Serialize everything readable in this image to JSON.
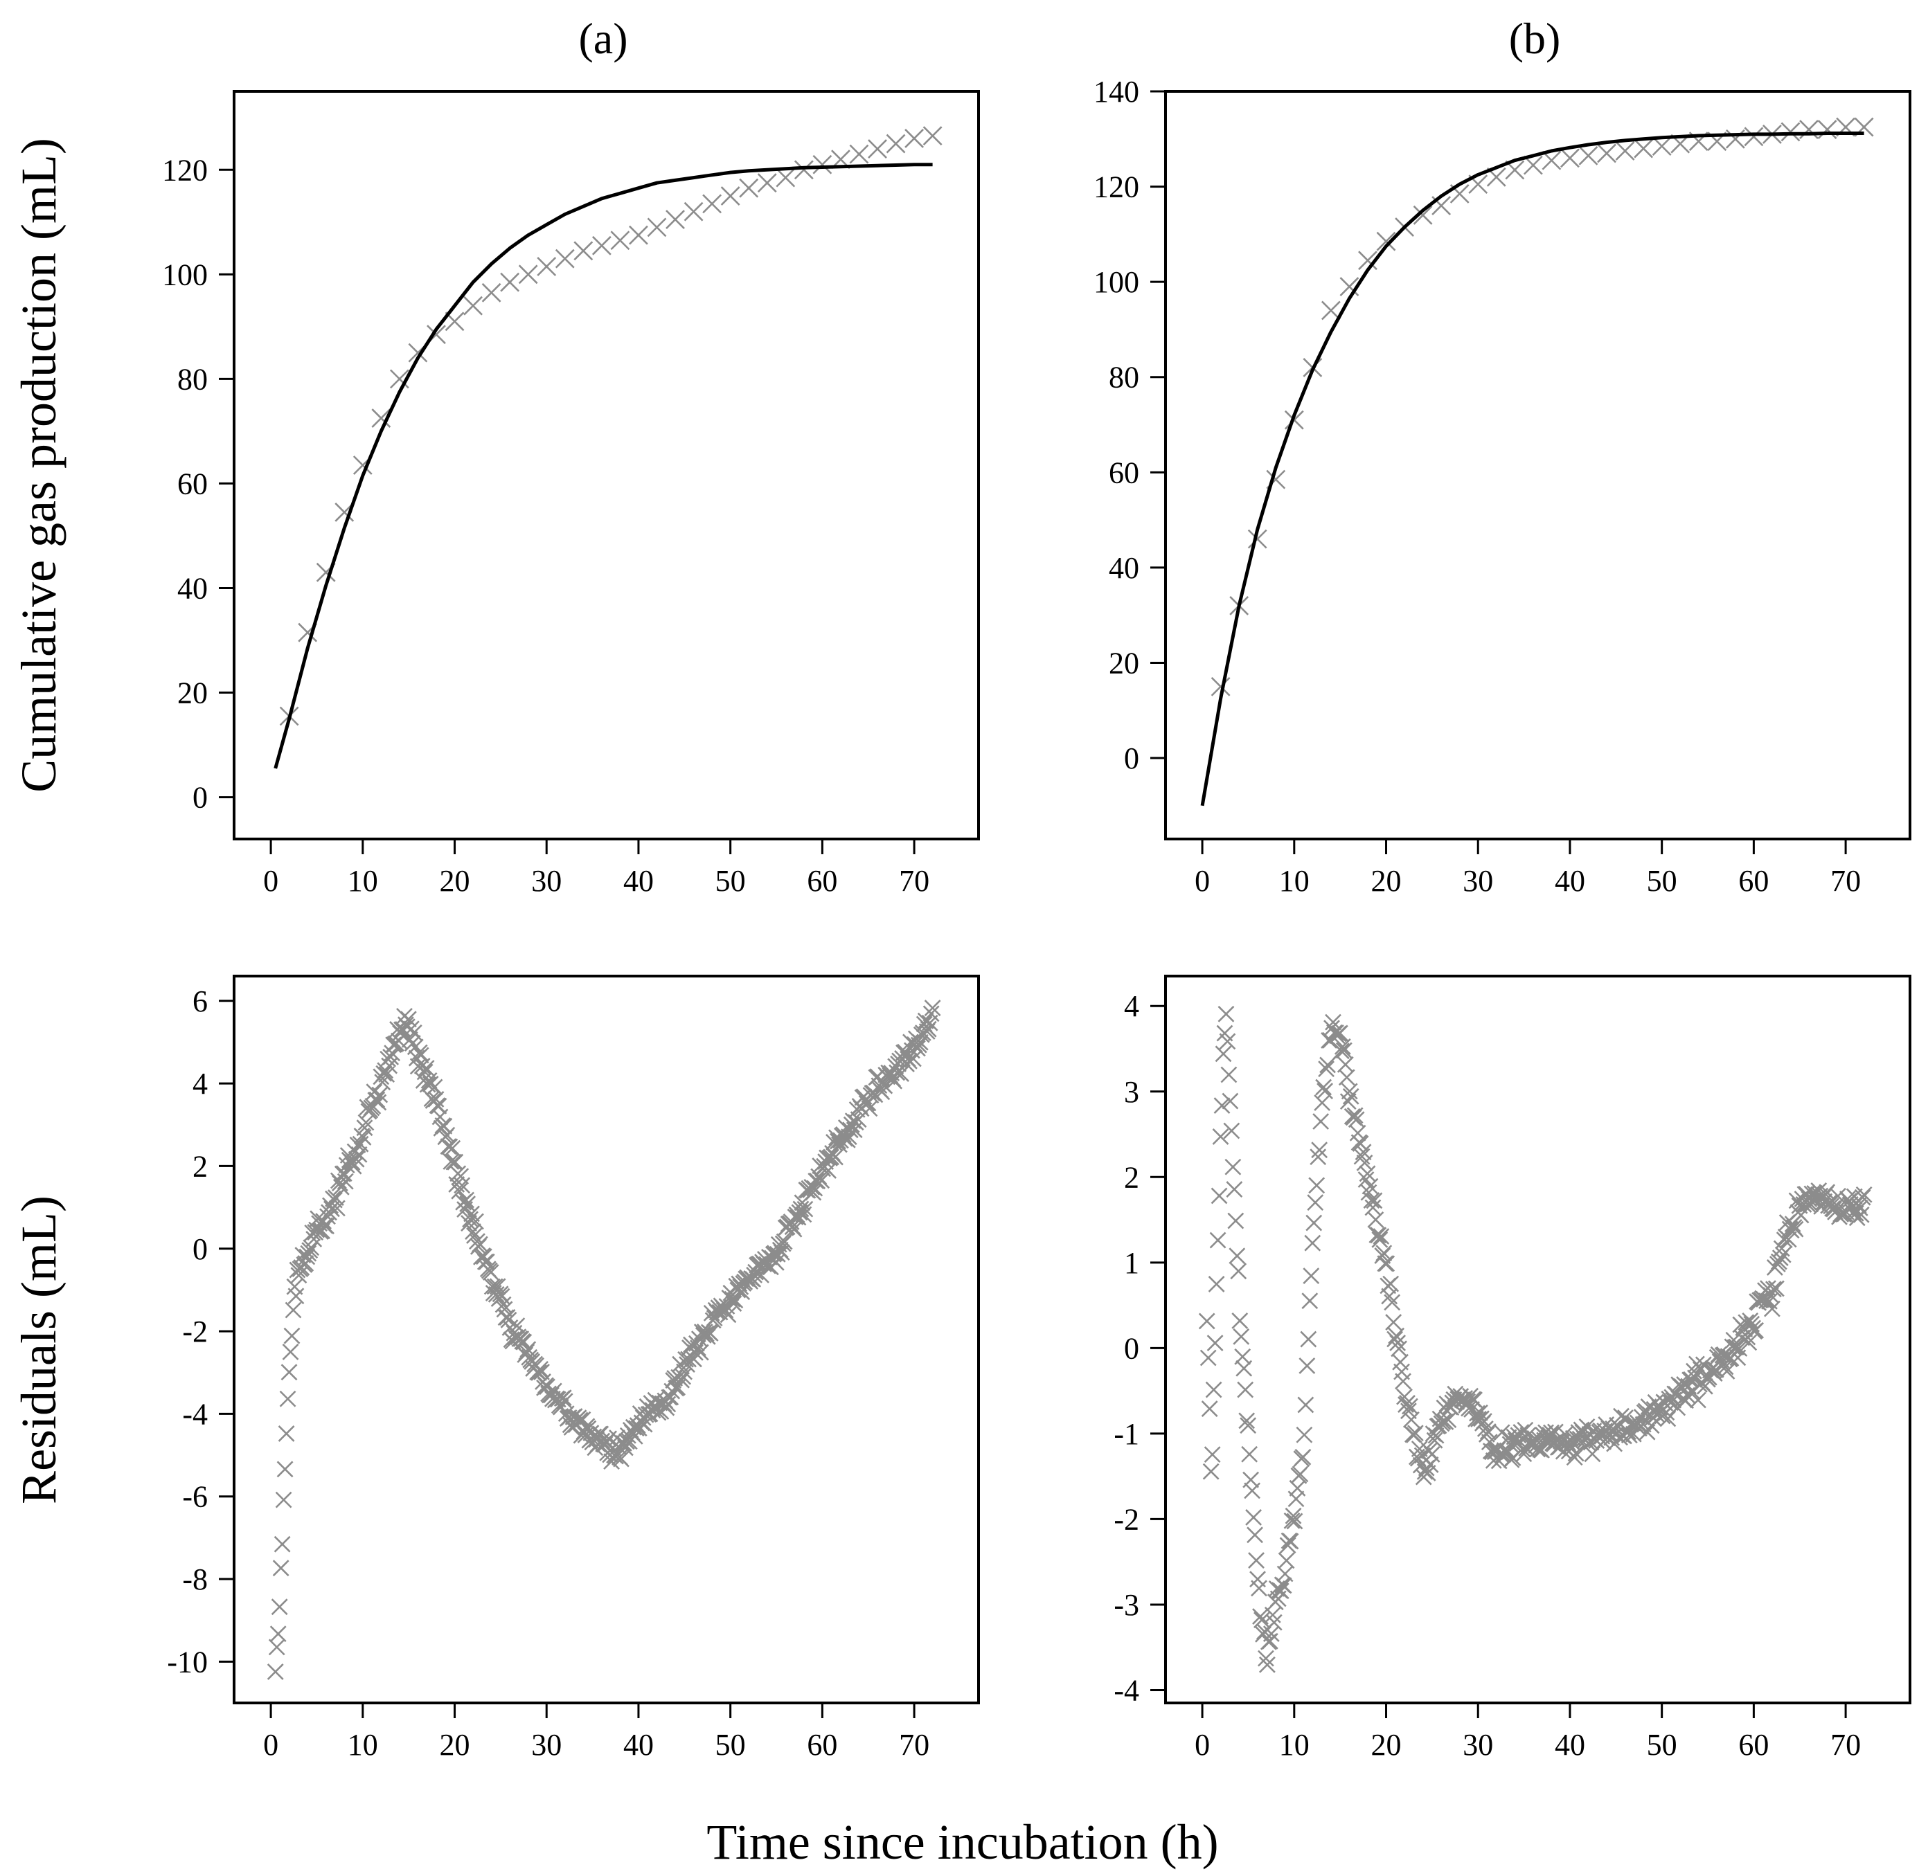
{
  "figure": {
    "xlabel": "Time since incubation (h)",
    "ylabel_top": "Cumulative gas production (mL)",
    "ylabel_bottom": "Residuals (mL)",
    "panel_labels": [
      "(a)",
      "(b)"
    ]
  },
  "style": {
    "fit_color": "#000000",
    "marker_color": "#8c8c8c",
    "axis_color": "#000000"
  },
  "chart_data": [
    {
      "id": "a-gas",
      "type": "scatter",
      "title": "(a)",
      "xlabel": "Time since incubation (h)",
      "ylabel": "Cumulative gas production (mL)",
      "xlim": [
        -4,
        77
      ],
      "ylim": [
        -8,
        135
      ],
      "xticks": [
        0,
        10,
        20,
        30,
        40,
        50,
        60,
        70
      ],
      "yticks": [
        0,
        20,
        40,
        60,
        80,
        100,
        120
      ],
      "series": [
        {
          "name": "observed",
          "marker": "x",
          "x": [
            2,
            4,
            6,
            8,
            10,
            12,
            14,
            16,
            18,
            20,
            22,
            24,
            26,
            28,
            30,
            32,
            34,
            36,
            38,
            40,
            42,
            44,
            46,
            48,
            50,
            52,
            54,
            56,
            58,
            60,
            62,
            64,
            66,
            68,
            70,
            72
          ],
          "y": [
            15.5,
            31.5,
            43,
            54.5,
            63.5,
            72.5,
            80,
            85,
            88.5,
            91,
            94,
            96.5,
            98.5,
            100,
            101.5,
            103,
            104.5,
            105.5,
            106.5,
            107.5,
            109,
            110.5,
            112,
            113.5,
            115,
            116.5,
            117.5,
            118.5,
            120,
            121,
            122,
            123,
            124,
            125,
            126,
            126.5
          ]
        },
        {
          "name": "fitted",
          "type": "line",
          "x": [
            0.5,
            2,
            4,
            6,
            8,
            10,
            12,
            14,
            16,
            18,
            20,
            22,
            24,
            26,
            28,
            30,
            32,
            34,
            36,
            38,
            40,
            42,
            44,
            46,
            48,
            50,
            52,
            54,
            56,
            58,
            60,
            62,
            64,
            66,
            68,
            70,
            72
          ],
          "y": [
            5.5,
            15,
            28.5,
            40.5,
            51.5,
            61.5,
            70,
            77.5,
            84,
            89.5,
            94,
            98.5,
            102,
            105,
            107.5,
            109.5,
            111.5,
            113,
            114.5,
            115.5,
            116.5,
            117.5,
            118,
            118.5,
            119,
            119.5,
            119.8,
            120,
            120.2,
            120.4,
            120.5,
            120.6,
            120.7,
            120.8,
            120.9,
            121,
            121
          ]
        }
      ]
    },
    {
      "id": "b-gas",
      "type": "scatter",
      "title": "(b)",
      "xlabel": "Time since incubation (h)",
      "ylabel": "Cumulative gas production (mL)",
      "xlim": [
        -4,
        77
      ],
      "ylim": [
        -17,
        140
      ],
      "xticks": [
        0,
        10,
        20,
        30,
        40,
        50,
        60,
        70
      ],
      "yticks": [
        0,
        20,
        40,
        60,
        80,
        100,
        120,
        140
      ],
      "series": [
        {
          "name": "observed",
          "marker": "x",
          "x": [
            2,
            4,
            6,
            8,
            10,
            12,
            14,
            16,
            18,
            20,
            22,
            24,
            26,
            28,
            30,
            32,
            34,
            36,
            38,
            40,
            42,
            44,
            46,
            48,
            50,
            52,
            54,
            56,
            58,
            60,
            62,
            64,
            66,
            68,
            70,
            72
          ],
          "y": [
            15,
            32,
            46,
            58.5,
            71,
            82,
            94,
            99,
            104.5,
            108.5,
            111.5,
            114,
            116,
            118.5,
            120.5,
            122,
            123.5,
            124.5,
            125.5,
            126,
            126.5,
            127,
            127.5,
            128,
            128.5,
            129,
            129.5,
            129.5,
            130,
            130.5,
            131,
            131.5,
            132,
            132,
            132.5,
            132.5
          ]
        },
        {
          "name": "fitted",
          "type": "line",
          "x": [
            0,
            2,
            4,
            6,
            8,
            10,
            12,
            14,
            16,
            18,
            20,
            22,
            24,
            26,
            28,
            30,
            32,
            34,
            36,
            38,
            40,
            42,
            44,
            46,
            48,
            50,
            52,
            54,
            56,
            58,
            60,
            62,
            64,
            66,
            68,
            70,
            72
          ],
          "y": [
            -10,
            12.5,
            32,
            48,
            61,
            72,
            81.5,
            89.5,
            96.5,
            102.5,
            107.5,
            111.5,
            115,
            118,
            120.5,
            122.5,
            124,
            125.5,
            126.5,
            127.5,
            128.2,
            128.8,
            129.3,
            129.7,
            130,
            130.3,
            130.5,
            130.7,
            130.8,
            130.9,
            131,
            131,
            131.1,
            131.1,
            131.2,
            131.2,
            131.2
          ]
        }
      ]
    },
    {
      "id": "a-residuals",
      "type": "scatter",
      "xlabel": "Time since incubation (h)",
      "ylabel": "Residuals (mL)",
      "xlim": [
        -4,
        77
      ],
      "ylim": [
        -11,
        6.6
      ],
      "xticks": [
        0,
        10,
        20,
        30,
        40,
        50,
        60,
        70
      ],
      "yticks": [
        -10,
        -8,
        -6,
        -4,
        -2,
        0,
        2,
        4,
        6
      ],
      "series": [
        {
          "name": "residuals",
          "marker": "x",
          "knots_x": [
            0.5,
            1,
            1.5,
            2,
            2.5,
            3,
            4,
            5,
            6,
            8,
            10,
            12,
            14,
            15,
            18,
            22,
            26,
            30,
            34,
            38,
            40,
            43,
            46,
            50,
            55,
            60,
            65,
            70,
            72
          ],
          "knots_y": [
            -10.2,
            -8.5,
            -5.5,
            -3,
            -1.2,
            -0.5,
            -0.2,
            0.5,
            0.6,
            1.8,
            2.8,
            4,
            5.3,
            5.4,
            3.5,
            0.5,
            -1.8,
            -3.3,
            -4.4,
            -5,
            -4.2,
            -3.7,
            -2.5,
            -1.2,
            -0.1,
            1.9,
            3.6,
            4.8,
            5.7
          ],
          "n_points": 480,
          "scatter_sd": 0.2
        }
      ]
    },
    {
      "id": "b-residuals",
      "type": "scatter",
      "xlabel": "Time since incubation (h)",
      "ylabel": "Residuals (mL)",
      "xlim": [
        -4,
        77
      ],
      "ylim": [
        -4.15,
        4.35
      ],
      "xticks": [
        0,
        10,
        20,
        30,
        40,
        50,
        60,
        70
      ],
      "yticks": [
        -4,
        -3,
        -2,
        -1,
        0,
        1,
        2,
        3,
        4
      ],
      "series": [
        {
          "name": "residuals",
          "marker": "x",
          "knots_x": [
            0.5,
            1,
            1.5,
            2,
            2.5,
            3,
            4,
            5,
            6,
            7,
            8,
            9,
            10,
            11,
            12,
            13,
            14,
            15,
            16,
            18,
            20,
            22,
            24,
            25,
            26,
            28,
            30,
            32,
            35,
            40,
            45,
            50,
            55,
            58,
            60,
            62,
            64,
            66,
            68,
            70,
            72
          ],
          "knots_y": [
            0.4,
            -1.6,
            0.5,
            2.5,
            4,
            3,
            0.6,
            -1,
            -2.7,
            -3.6,
            -3,
            -2.6,
            -1.9,
            -1.2,
            1.2,
            2.8,
            3.7,
            3.7,
            3,
            2,
            0.9,
            -0.5,
            -1.5,
            -1.2,
            -0.8,
            -0.5,
            -0.8,
            -1.2,
            -1.1,
            -1.1,
            -1,
            -0.7,
            -0.3,
            0,
            0.3,
            0.7,
            1.4,
            1.8,
            1.7,
            1.6,
            1.7
          ],
          "n_points": 480,
          "scatter_sd": 0.12
        }
      ]
    }
  ]
}
